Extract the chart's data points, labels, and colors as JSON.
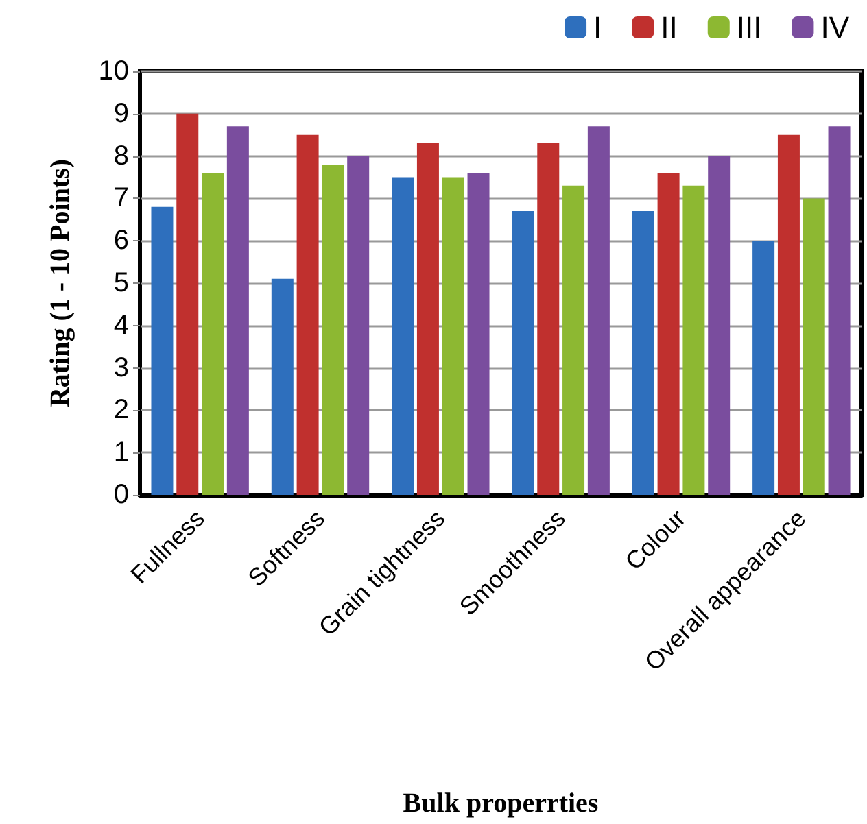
{
  "chart_data": {
    "type": "bar",
    "xlabel": "Bulk properrties",
    "ylabel": "Rating (1 - 10 Points)",
    "categories": [
      "Fullness",
      "Softness",
      "Grain tightness",
      "Smoothness",
      "Colour",
      "Overall appearance"
    ],
    "series": [
      {
        "name": "I",
        "color": "#2e6fbd",
        "values": [
          6.8,
          5.1,
          7.5,
          6.7,
          6.7,
          6.0
        ]
      },
      {
        "name": "II",
        "color": "#c0302e",
        "values": [
          9.0,
          8.5,
          8.3,
          8.3,
          7.6,
          8.5
        ]
      },
      {
        "name": "III",
        "color": "#8db832",
        "values": [
          7.6,
          7.8,
          7.5,
          7.3,
          7.3,
          7.0
        ]
      },
      {
        "name": "IV",
        "color": "#7a4d9e",
        "values": [
          8.7,
          8.0,
          7.6,
          8.7,
          8.0,
          8.7
        ]
      }
    ],
    "ylim": [
      0,
      10
    ],
    "yticks": [
      0,
      1,
      2,
      3,
      4,
      5,
      6,
      7,
      8,
      9,
      10
    ],
    "grid": "y",
    "legend": "top right"
  }
}
